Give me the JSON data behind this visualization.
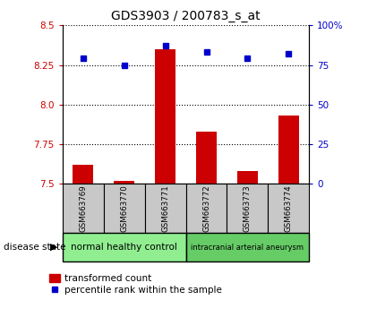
{
  "title": "GDS3903 / 200783_s_at",
  "samples": [
    "GSM663769",
    "GSM663770",
    "GSM663771",
    "GSM663772",
    "GSM663773",
    "GSM663774"
  ],
  "transformed_count": [
    7.62,
    7.52,
    8.35,
    7.83,
    7.58,
    7.93
  ],
  "percentile_rank": [
    79,
    75,
    87,
    83,
    79,
    82
  ],
  "ylim_left": [
    7.5,
    8.5
  ],
  "ylim_right": [
    0,
    100
  ],
  "yticks_left": [
    7.5,
    7.75,
    8.0,
    8.25,
    8.5
  ],
  "yticks_right": [
    0,
    25,
    50,
    75,
    100
  ],
  "groups": [
    {
      "label": "normal healthy control",
      "indices": [
        0,
        1,
        2
      ],
      "color": "#90EE90"
    },
    {
      "label": "intracranial arterial aneurysm",
      "indices": [
        3,
        4,
        5
      ],
      "color": "#66CC66"
    }
  ],
  "bar_color": "#CC0000",
  "dot_color": "#0000CC",
  "bar_width": 0.5,
  "sample_box_color": "#C8C8C8",
  "legend_label_tc": "transformed count",
  "legend_label_pr": "percentile rank within the sample",
  "disease_state_label": "disease state",
  "left_tick_color": "#CC0000",
  "right_tick_color": "#0000CC",
  "dotted_line_color": "#000000"
}
